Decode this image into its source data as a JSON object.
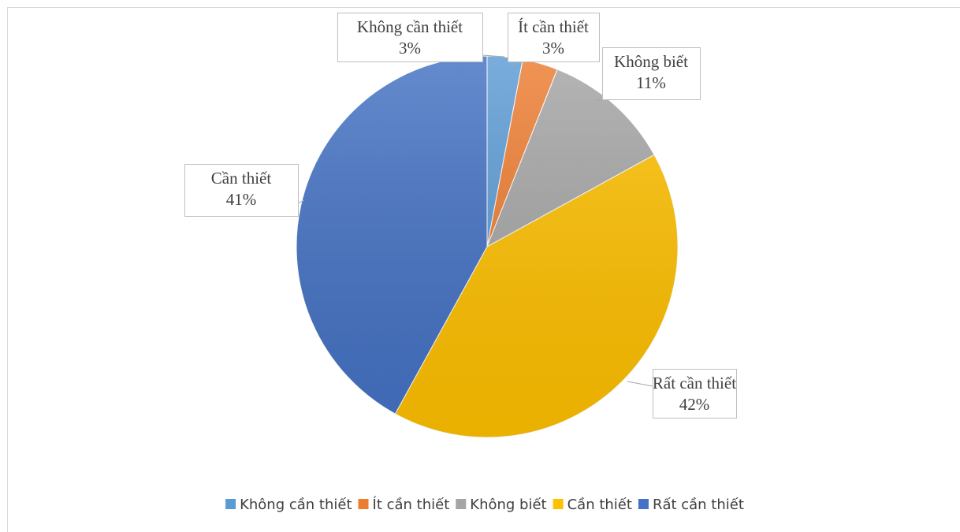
{
  "chart_data": {
    "type": "pie",
    "categories": [
      "Không cần thiết",
      "Ít cần thiết",
      "Không biết",
      "Cần thiết",
      "Rất cần thiết"
    ],
    "values": [
      3,
      3,
      11,
      41,
      42
    ],
    "value_labels": [
      "3%",
      "3%",
      "11%",
      "41%",
      "42%"
    ],
    "colors": [
      "#5b9bd5",
      "#ed7d31",
      "#a5a5a5",
      "#ffc000",
      "#4472c4"
    ],
    "legend": "bottom"
  }
}
